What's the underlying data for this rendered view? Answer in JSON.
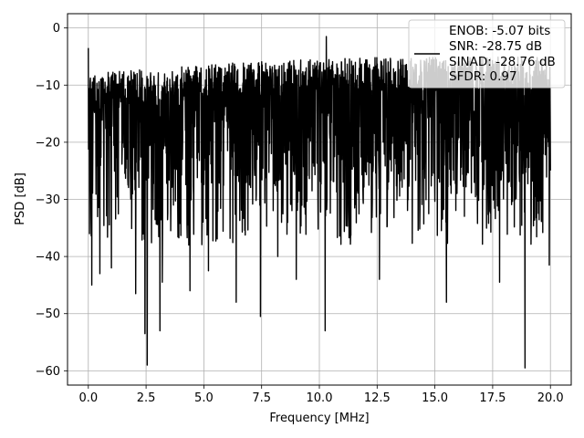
{
  "chart_data": {
    "type": "line",
    "title": "",
    "xlabel": "Frequency [MHz]",
    "ylabel": "PSD [dB]",
    "xlim": [
      -0.9,
      20.9
    ],
    "ylim": [
      -62.5,
      2.5
    ],
    "xticks": [
      0.0,
      2.5,
      5.0,
      7.5,
      10.0,
      12.5,
      15.0,
      17.5,
      20.0
    ],
    "xtick_labels": [
      "0.0",
      "2.5",
      "5.0",
      "7.5",
      "10.0",
      "12.5",
      "15.0",
      "17.5",
      "20.0"
    ],
    "yticks": [
      0,
      -10,
      -20,
      -30,
      -40,
      -50,
      -60
    ],
    "ytick_labels": [
      "0",
      "−10",
      "−20",
      "−30",
      "−40",
      "−50",
      "−60"
    ],
    "grid": true,
    "legend_position": "top-right",
    "legend_lines": [
      "ENOB: -5.07 bits",
      "SNR: -28.75 dB",
      "SINAD: -28.76 dB",
      "SFDR: 0.97"
    ],
    "series": [
      {
        "color": "#000000",
        "x_range": [
          0.0,
          20.0
        ],
        "num_points": 2048,
        "upper_envelope": [
          -8,
          -6,
          -5,
          -5
        ],
        "typical_band": [
          -28,
          -10
        ],
        "notable_points": [
          {
            "x": 0.0,
            "y": -3.5
          },
          {
            "x": 0.05,
            "y": -36
          },
          {
            "x": 0.15,
            "y": -45
          },
          {
            "x": 0.5,
            "y": -43
          },
          {
            "x": 1.0,
            "y": -42
          },
          {
            "x": 2.05,
            "y": -46.5
          },
          {
            "x": 2.45,
            "y": -53.5
          },
          {
            "x": 2.55,
            "y": -59
          },
          {
            "x": 3.1,
            "y": -53
          },
          {
            "x": 3.2,
            "y": -44.5
          },
          {
            "x": 4.4,
            "y": -46
          },
          {
            "x": 5.2,
            "y": -42.5
          },
          {
            "x": 6.4,
            "y": -48
          },
          {
            "x": 7.45,
            "y": -50.5
          },
          {
            "x": 8.2,
            "y": -40
          },
          {
            "x": 9.0,
            "y": -44
          },
          {
            "x": 10.25,
            "y": -53
          },
          {
            "x": 10.3,
            "y": -1.5
          },
          {
            "x": 12.6,
            "y": -44
          },
          {
            "x": 15.5,
            "y": -48
          },
          {
            "x": 17.8,
            "y": -44.5
          },
          {
            "x": 18.9,
            "y": -59.5
          },
          {
            "x": 19.95,
            "y": -41.5
          }
        ]
      }
    ]
  }
}
